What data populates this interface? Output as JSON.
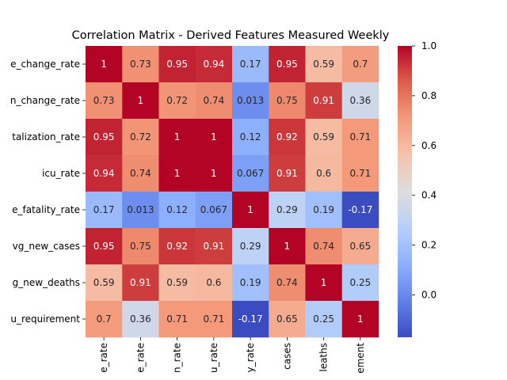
{
  "chart_data": {
    "type": "heatmap",
    "title": "Correlation Matrix - Derived Features Measured Weekly",
    "row_labels": [
      "e_change_rate",
      "n_change_rate",
      "talization_rate",
      "icu_rate",
      "e_fatality_rate",
      "vg_new_cases",
      "g_new_deaths",
      "u_requirement"
    ],
    "col_labels": [
      "e_rate",
      "e_rate",
      "n_rate",
      "u_rate",
      "y_rate",
      "cases",
      "leaths",
      "ement"
    ],
    "values": [
      [
        1,
        0.73,
        0.95,
        0.94,
        0.17,
        0.95,
        0.59,
        0.7
      ],
      [
        0.73,
        1,
        0.72,
        0.74,
        0.013,
        0.75,
        0.91,
        0.36
      ],
      [
        0.95,
        0.72,
        1,
        1,
        0.12,
        0.92,
        0.59,
        0.71
      ],
      [
        0.94,
        0.74,
        1,
        1,
        0.067,
        0.91,
        0.6,
        0.71
      ],
      [
        0.17,
        0.013,
        0.12,
        0.067,
        1,
        0.29,
        0.19,
        -0.17
      ],
      [
        0.95,
        0.75,
        0.92,
        0.91,
        0.29,
        1,
        0.74,
        0.65
      ],
      [
        0.59,
        0.91,
        0.59,
        0.6,
        0.19,
        0.74,
        1,
        0.25
      ],
      [
        0.7,
        0.36,
        0.71,
        0.71,
        -0.17,
        0.65,
        0.25,
        1
      ]
    ],
    "colormap": "coolwarm",
    "vmin": -0.17,
    "vmax": 1.0,
    "colorbar_ticks": [
      "1.0",
      "0.8",
      "0.6",
      "0.4",
      "0.2",
      "0.0"
    ],
    "colorbar_tick_values": [
      1.0,
      0.8,
      0.6,
      0.4,
      0.2,
      0.0
    ]
  }
}
